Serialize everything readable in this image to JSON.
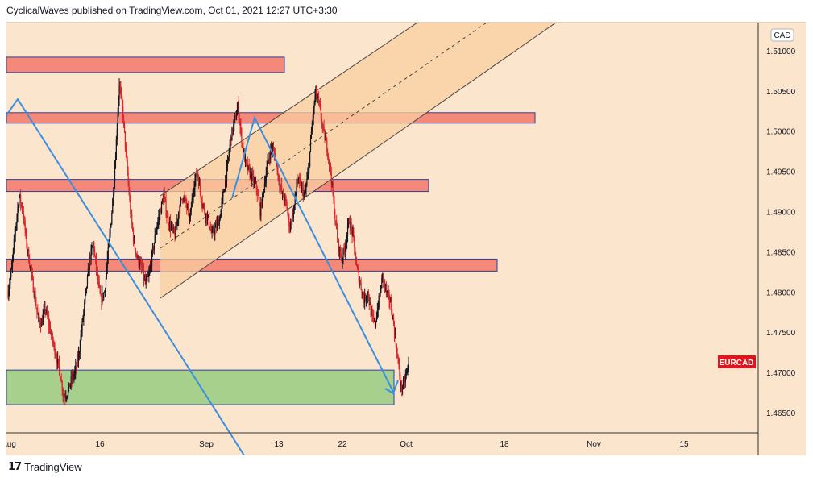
{
  "header": {
    "published_text": "CyclicalWaves published on TradingView.com, Oct 01, 2021 12:27 UTC+3:30"
  },
  "footer": {
    "brand": "TradingView"
  },
  "colors": {
    "background": "#fce5cd",
    "up_candle": "#131722",
    "down_candle": "#d8262b",
    "zone_red_fill": "#f4897a",
    "zone_green_fill": "#a8d08d",
    "zone_border": "#2a3f96",
    "channel_fill": "#f9cfa0",
    "trend_line": "#3a8fe0",
    "price_label_bg": "#e0141c"
  },
  "chart_data": {
    "type": "candlestick",
    "symbol_label": "EURCAD",
    "currency": "CAD",
    "x_ticks": [
      "Aug",
      "16",
      "Sep",
      "13",
      "22",
      "Oct",
      "18",
      "Nov",
      "15"
    ],
    "y_ticks": [
      "1.51000",
      "1.50500",
      "1.50000",
      "1.49500",
      "1.49000",
      "1.48500",
      "1.48000",
      "1.47500",
      "1.47000",
      "1.46500"
    ],
    "ylim": [
      1.4625,
      1.5135
    ],
    "current_price_label": "EURCAD",
    "current_price": 1.4705,
    "zones": [
      {
        "kind": "resistance",
        "low": 1.5073,
        "high": 1.5092
      },
      {
        "kind": "resistance",
        "low": 1.501,
        "high": 1.5023
      },
      {
        "kind": "resistance",
        "low": 1.4925,
        "high": 1.494
      },
      {
        "kind": "resistance",
        "low": 1.4826,
        "high": 1.4841
      },
      {
        "kind": "support",
        "low": 1.466,
        "high": 1.4703
      }
    ],
    "close_path": [
      1.48,
      1.483,
      1.488,
      1.492,
      1.49,
      1.486,
      1.483,
      1.48,
      1.477,
      1.476,
      1.478,
      1.476,
      1.474,
      1.472,
      1.47,
      1.467,
      1.4675,
      1.469,
      1.47,
      1.472,
      1.476,
      1.48,
      1.484,
      1.486,
      1.482,
      1.479,
      1.48,
      1.485,
      1.49,
      1.497,
      1.506,
      1.502,
      1.496,
      1.49,
      1.486,
      1.484,
      1.483,
      1.481,
      1.482,
      1.485,
      1.488,
      1.49,
      1.492,
      1.489,
      1.488,
      1.487,
      1.49,
      1.492,
      1.491,
      1.489,
      1.493,
      1.495,
      1.492,
      1.49,
      1.489,
      1.487,
      1.488,
      1.489,
      1.492,
      1.495,
      1.499,
      1.501,
      1.503,
      1.499,
      1.496,
      1.495,
      1.494,
      1.493,
      1.49,
      1.493,
      1.496,
      1.498,
      1.497,
      1.494,
      1.492,
      1.491,
      1.488,
      1.49,
      1.494,
      1.493,
      1.492,
      1.495,
      1.501,
      1.505,
      1.503,
      1.5,
      1.498,
      1.495,
      1.49,
      1.486,
      1.484,
      1.486,
      1.489,
      1.487,
      1.483,
      1.481,
      1.479,
      1.48,
      1.477,
      1.476,
      1.479,
      1.482,
      1.48,
      1.479,
      1.476,
      1.472,
      1.468,
      1.469,
      1.471
    ]
  }
}
